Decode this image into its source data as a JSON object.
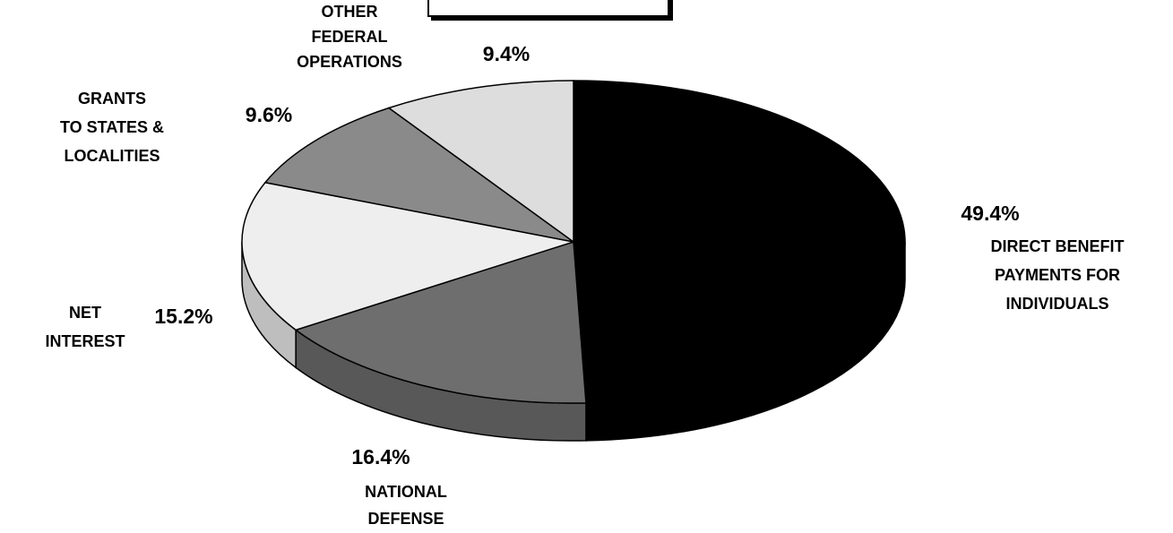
{
  "chart_data": {
    "type": "pie",
    "categories": [
      [
        "DIRECT BENEFIT",
        "PAYMENTS FOR",
        "INDIVIDUALS"
      ],
      [
        "NATIONAL",
        "DEFENSE"
      ],
      [
        "NET",
        "INTEREST"
      ],
      [
        "GRANTS",
        "TO STATES &",
        "LOCALITIES"
      ],
      [
        "OTHER",
        "FEDERAL",
        "OPERATIONS"
      ]
    ],
    "values": [
      49.4,
      16.4,
      15.2,
      9.6,
      9.4
    ],
    "value_labels": [
      "49.4%",
      "16.4%",
      "15.2%",
      "9.6%",
      "9.4%"
    ],
    "colors": [
      "#000000",
      "#6e6e6e",
      "#eeeeee",
      "#8a8a8a",
      "#dddddd"
    ]
  }
}
